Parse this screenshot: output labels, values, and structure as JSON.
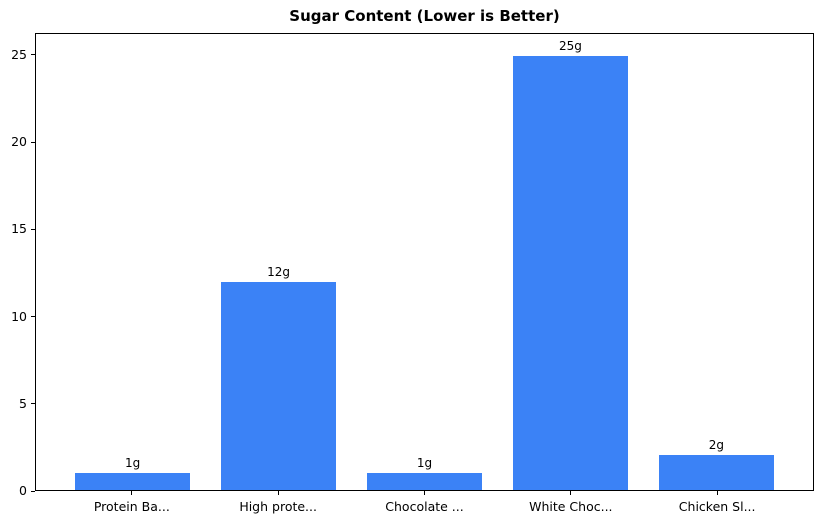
{
  "chart_data": {
    "type": "bar",
    "title": "Sugar Content (Lower is Better)",
    "categories": [
      "Protein Ba...",
      "High prote...",
      "Chocolate ...",
      "White Choc...",
      "Chicken Sl..."
    ],
    "values": [
      1,
      12,
      1,
      25,
      2
    ],
    "bar_labels": [
      "1g",
      "12g",
      "1g",
      "25g",
      "2g"
    ],
    "xlabel": "",
    "ylabel": "",
    "yticks": [
      0,
      5,
      10,
      15,
      20,
      25
    ],
    "ylim": [
      0,
      26.25
    ],
    "grid": false,
    "legend": null,
    "bar_color": "#3b82f6",
    "axis_color": "#000000",
    "text_color": "#000000",
    "background": "#ffffff"
  }
}
